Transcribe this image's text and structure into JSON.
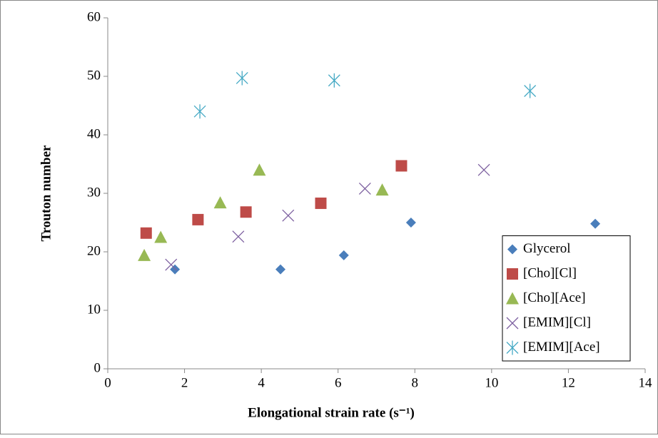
{
  "chart_data": {
    "type": "scatter",
    "x_label": "Elongational strain rate  (s⁻¹)",
    "y_label": "Trouton number",
    "xlim": [
      0,
      14
    ],
    "xticks": [
      0,
      2,
      4,
      6,
      8,
      10,
      12,
      14
    ],
    "ylim": [
      0,
      60
    ],
    "yticks": [
      0,
      10,
      20,
      30,
      40,
      50,
      60
    ],
    "grid": false,
    "legend": "lower right",
    "series": [
      {
        "name": "Glycerol",
        "color": "#4a7ebb",
        "marker": "diamond",
        "x": [
          1.75,
          4.5,
          6.15,
          7.9,
          12.7
        ],
        "values": [
          17,
          17,
          19.4,
          25,
          24.8
        ]
      },
      {
        "name": "[Cho][Cl]",
        "color": "#be4b48",
        "marker": "square",
        "x": [
          1,
          2.35,
          3.6,
          5.55,
          7.65
        ],
        "values": [
          23.2,
          25.5,
          26.8,
          28.3,
          34.7
        ]
      },
      {
        "name": "[Cho][Ace]",
        "color": "#98b954",
        "marker": "triangle",
        "x": [
          0.95,
          1.38,
          2.93,
          3.95,
          7.15
        ],
        "values": [
          19.4,
          22.5,
          28.4,
          34,
          30.6
        ]
      },
      {
        "name": "[EMIM][Cl]",
        "color": "#7d60a0",
        "marker": "x",
        "x": [
          1.65,
          3.4,
          4.7,
          6.7,
          9.8
        ],
        "values": [
          17.8,
          22.6,
          26.2,
          30.8,
          34
        ]
      },
      {
        "name": "[EMIM][Ace]",
        "color": "#46aac5",
        "marker": "star",
        "x": [
          2.4,
          3.5,
          5.9,
          11
        ],
        "values": [
          44,
          49.7,
          49.3,
          47.5
        ]
      }
    ]
  }
}
